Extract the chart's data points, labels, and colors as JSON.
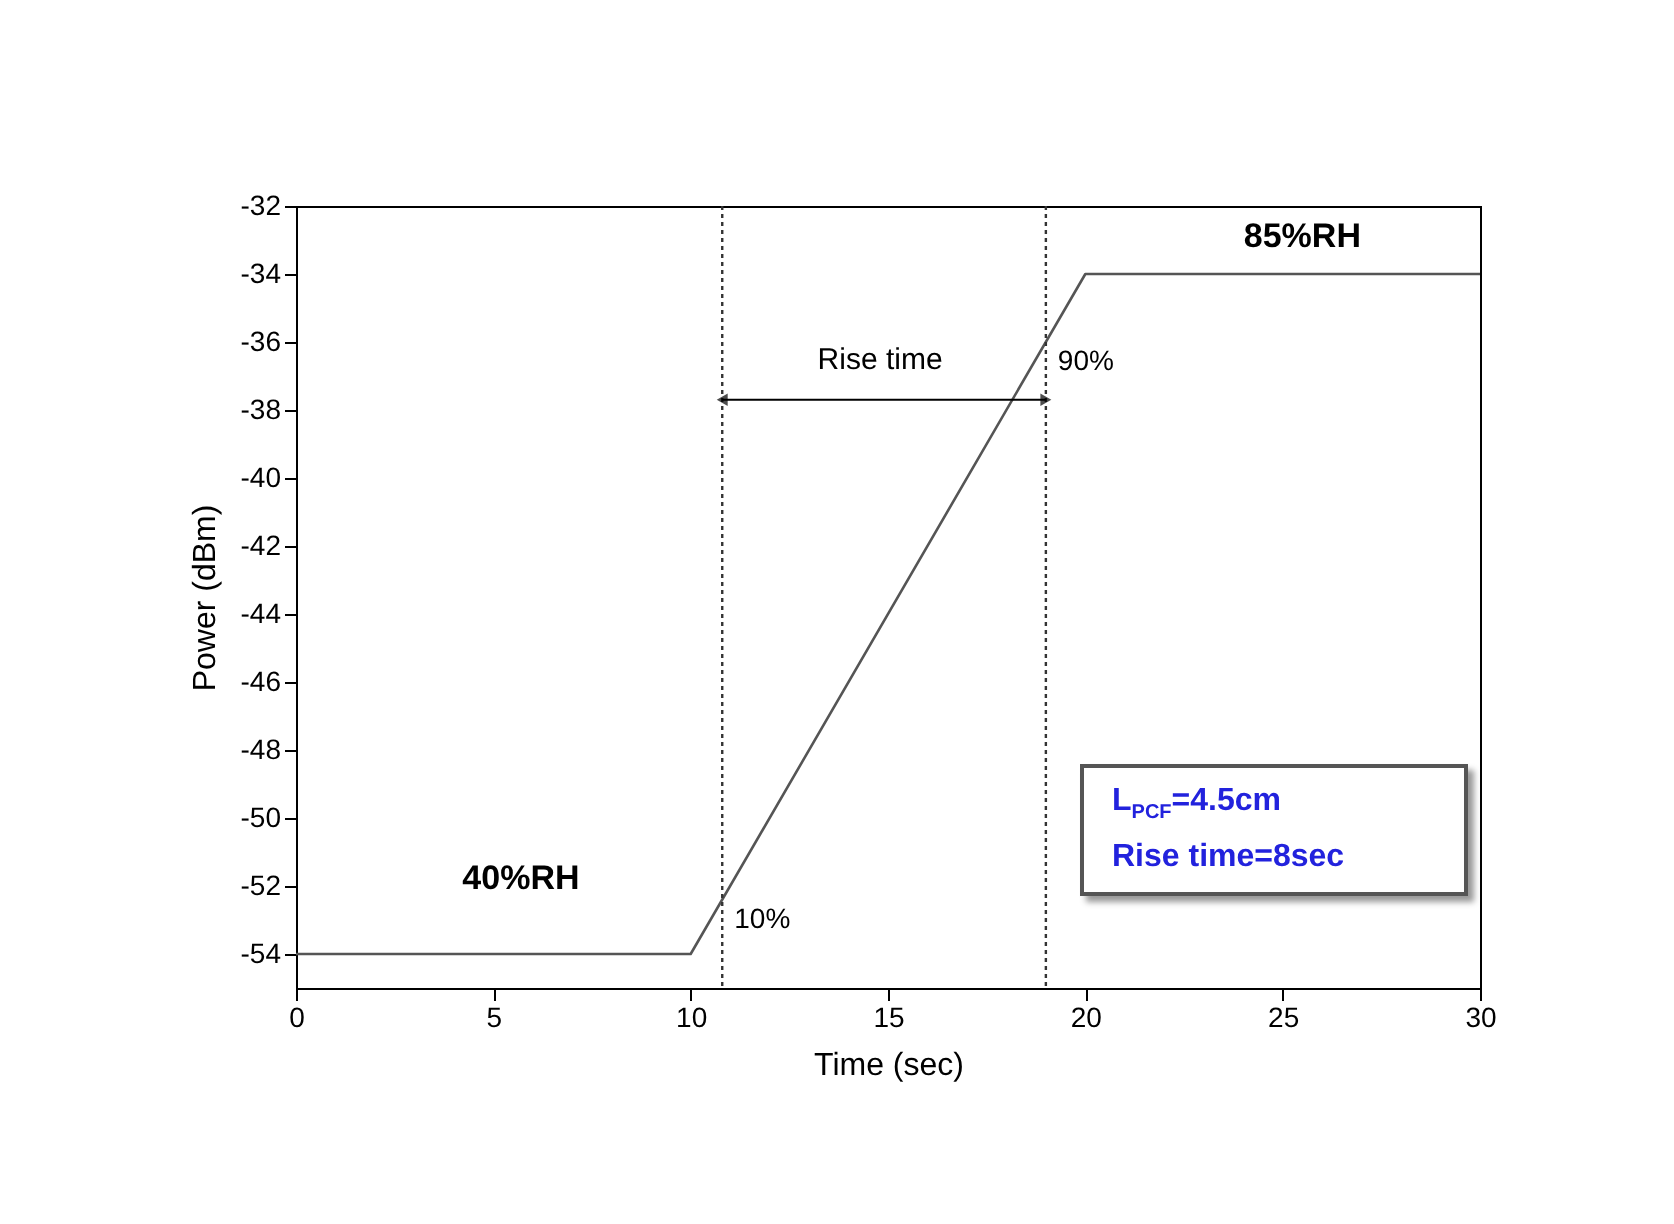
{
  "chart_data": {
    "type": "line",
    "xlabel": "Time (sec)",
    "ylabel": "Power (dBm)",
    "x": [
      0,
      10,
      20,
      30
    ],
    "series": [
      {
        "color": "#555555",
        "values": [
          -54,
          -54,
          -34,
          -34
        ]
      }
    ],
    "xlim": [
      0,
      30
    ],
    "xticks": [
      0,
      5,
      10,
      15,
      20,
      25,
      30
    ],
    "ylim": [
      -55,
      -32
    ],
    "yticks": [
      -54,
      -52,
      -50,
      -48,
      -46,
      -44,
      -42,
      -40,
      -38,
      -36,
      -34,
      -32
    ],
    "ref_lines": [
      {
        "axis": "x",
        "value": 10.8,
        "line_style": "dotted",
        "color": "#333333"
      },
      {
        "axis": "x",
        "value": 19,
        "line_style": "dotted",
        "color": "#333333"
      }
    ],
    "annotations": [
      "40%RH",
      "85%RH",
      "Rise time",
      {
        "text": "10%",
        "x": 10.8,
        "y": -52.4
      },
      {
        "text": "90%",
        "x": 19,
        "y": -36
      },
      "L$_{PCF}$=4.5cm",
      "Rise time=8sec"
    ],
    "grid": false,
    "marker": "none",
    "line_style": "solid"
  }
}
